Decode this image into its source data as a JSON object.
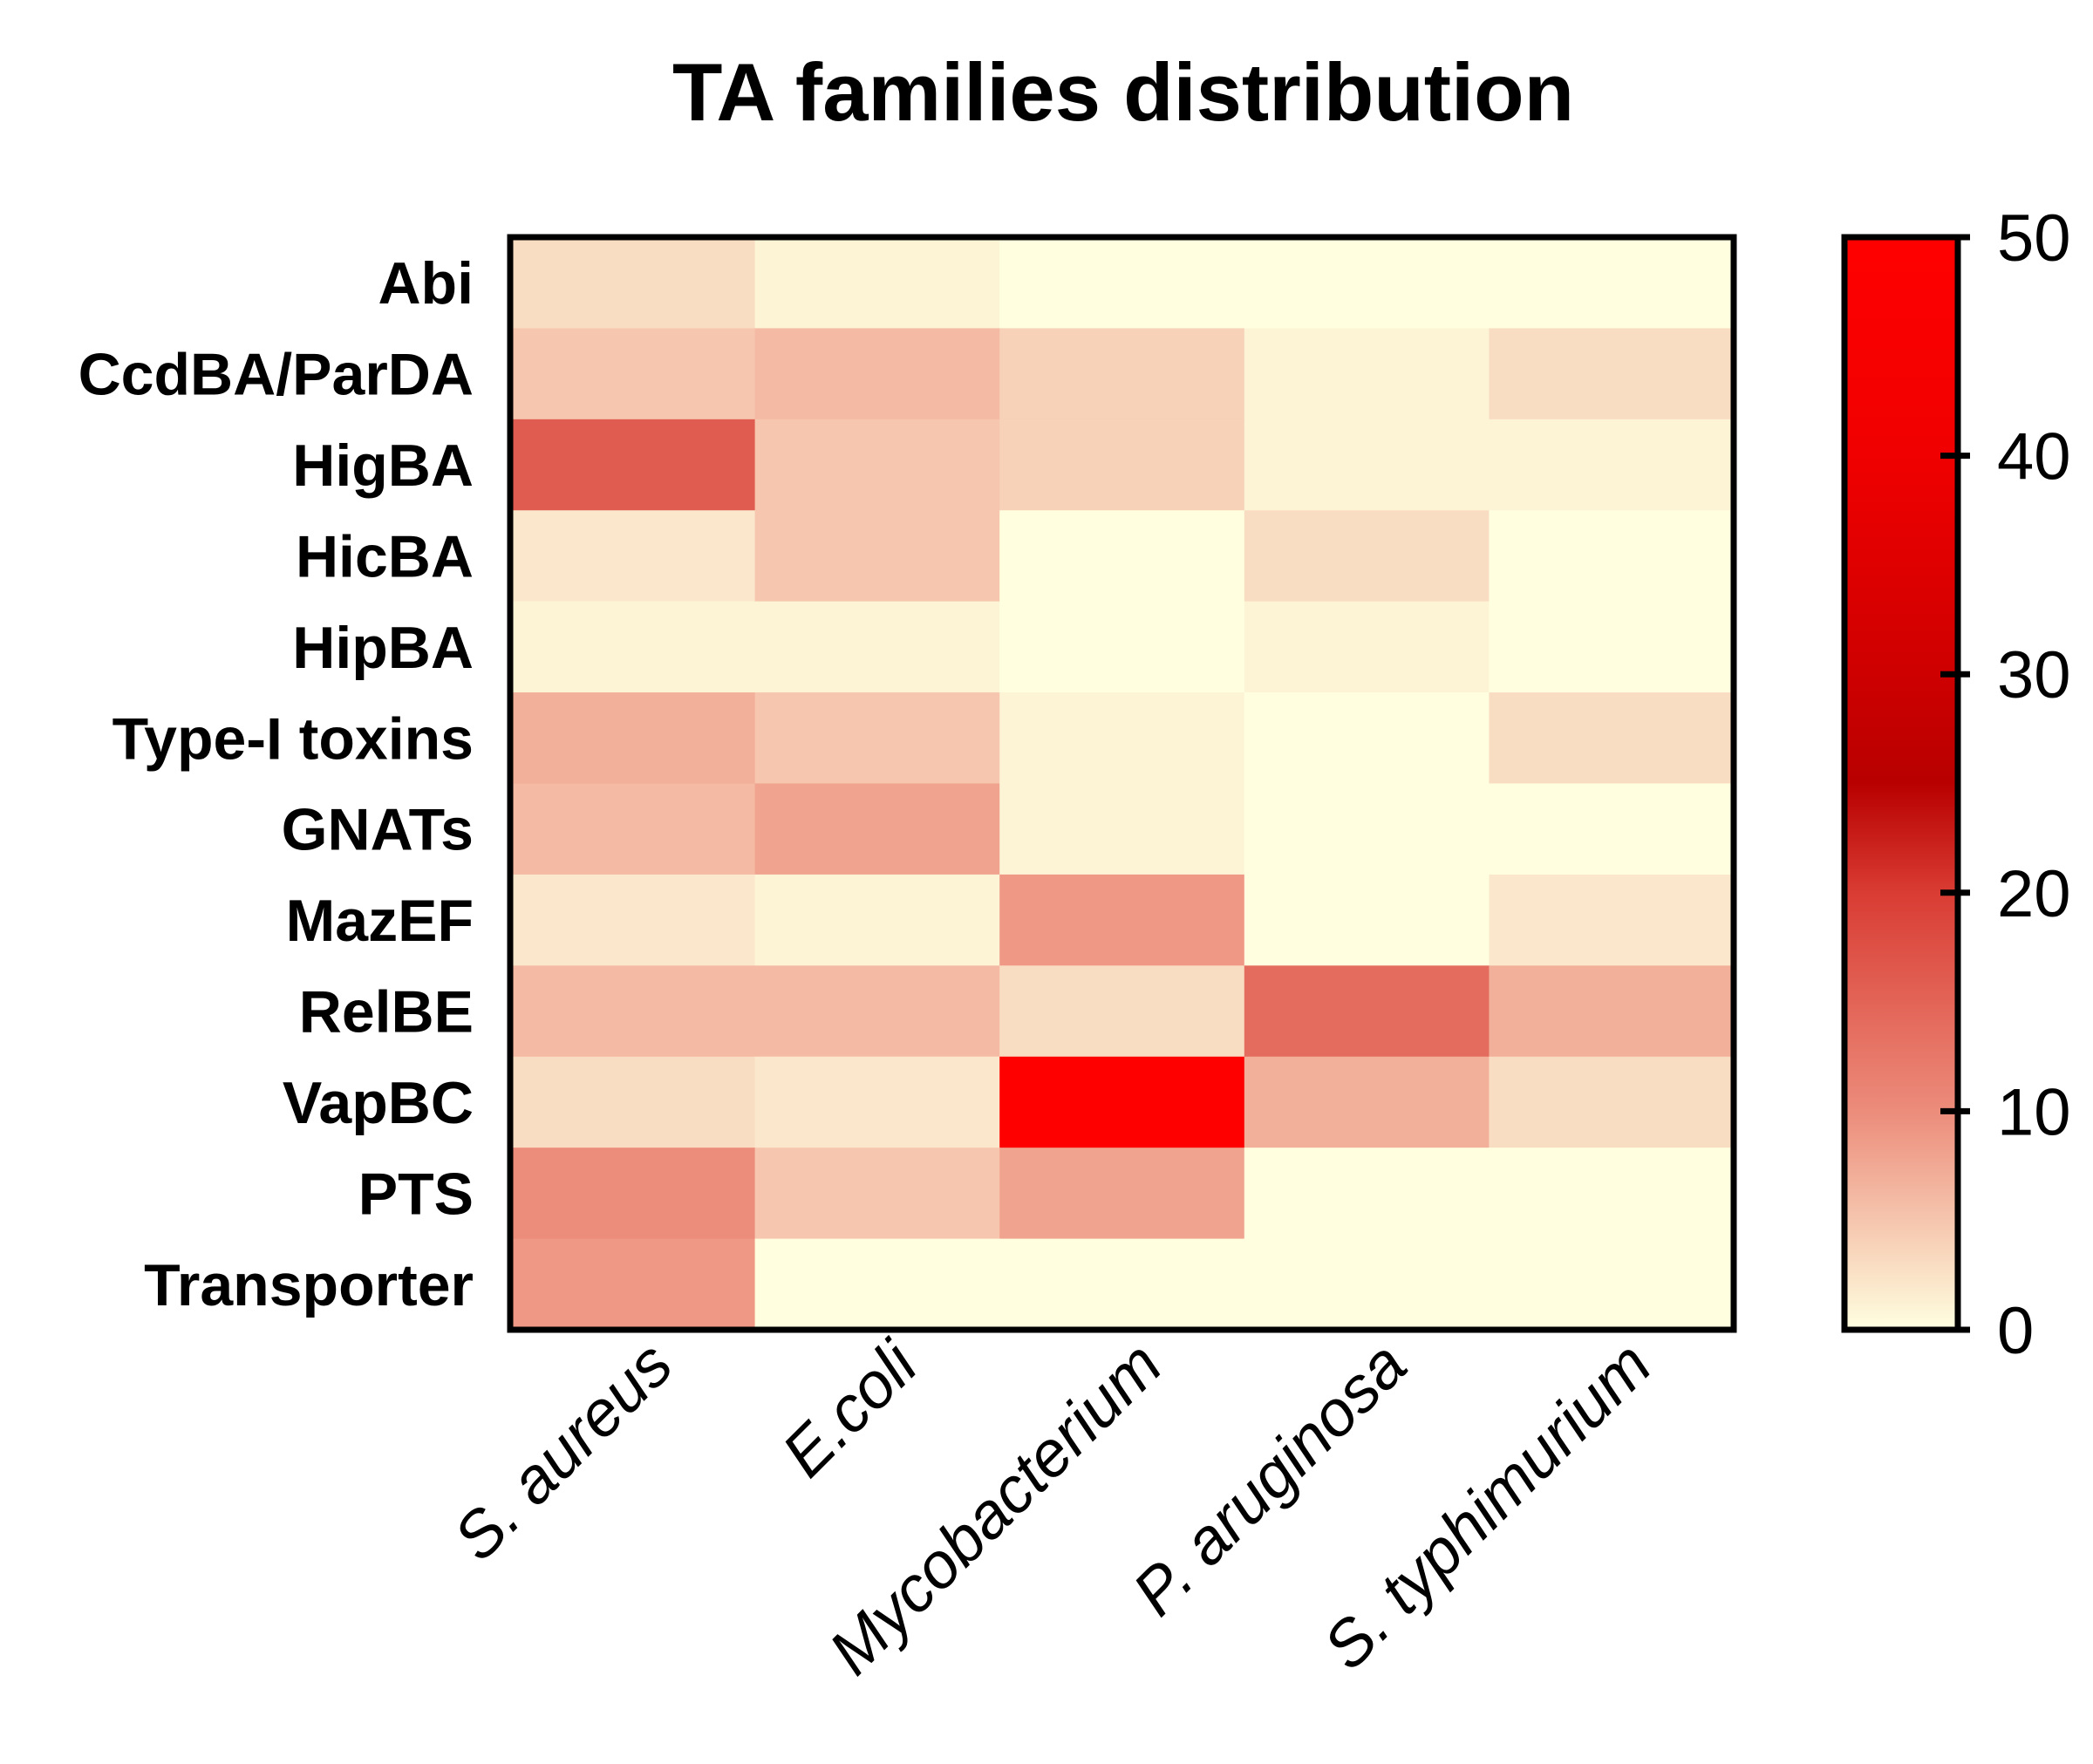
{
  "chart_data": {
    "type": "heatmap",
    "title": "TA families distribution",
    "xlabel": "",
    "ylabel": "",
    "columns": [
      "S. aureus",
      "E.coli",
      "Mycobacterium",
      "P. aruginosa",
      "S. typhimurium"
    ],
    "rows": [
      "Abi",
      "CcdBA/ParDA",
      "HigBA",
      "HicBA",
      "HipBA",
      "Type-I toxins",
      "GNATs",
      "MazEF",
      "RelBE",
      "VapBC",
      "PTS",
      "Transporter"
    ],
    "values": [
      [
        3,
        1,
        0,
        0,
        0
      ],
      [
        5,
        6,
        4,
        1,
        3
      ],
      [
        16,
        5,
        4,
        1,
        1
      ],
      [
        2,
        5,
        0,
        3,
        0
      ],
      [
        1,
        1,
        0,
        1,
        0
      ],
      [
        7,
        5,
        1,
        0,
        3
      ],
      [
        6,
        8,
        1,
        0,
        0
      ],
      [
        2,
        1,
        9,
        0,
        2
      ],
      [
        6,
        6,
        3,
        14,
        7
      ],
      [
        3,
        2,
        50,
        7,
        3
      ],
      [
        10,
        5,
        8,
        0,
        0
      ],
      [
        9,
        0,
        0,
        0,
        0
      ]
    ],
    "colorbar": {
      "min": 0,
      "max": 50,
      "ticks": [
        "0",
        "10",
        "20",
        "30",
        "40",
        "50"
      ],
      "tick_values": [
        0,
        10,
        20,
        30,
        40,
        50
      ],
      "stops": [
        {
          "value": 0,
          "color": "#FFFFE0"
        },
        {
          "value": 10,
          "color": "#EC8C7B"
        },
        {
          "value": 20,
          "color": "#D93C33"
        },
        {
          "value": 25,
          "color": "#B80000"
        },
        {
          "value": 30,
          "color": "#CE0000"
        },
        {
          "value": 40,
          "color": "#F00000"
        },
        {
          "value": 50,
          "color": "#FF0000"
        }
      ]
    }
  }
}
